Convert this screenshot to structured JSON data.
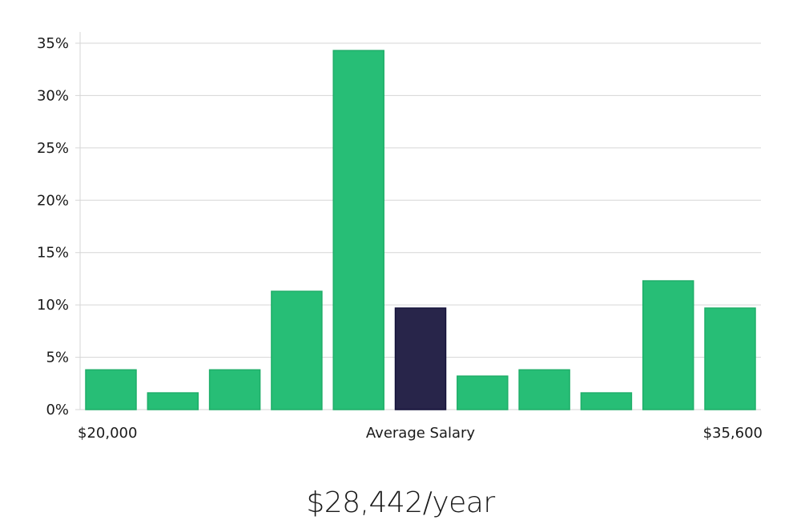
{
  "headline": "$28,442/year",
  "chart_data": {
    "type": "bar",
    "values": [
      3.8,
      1.6,
      3.8,
      11.3,
      34.3,
      9.7,
      3.2,
      3.8,
      1.6,
      12.3,
      9.7
    ],
    "highlight_index": 5,
    "x_labels": {
      "left": "$20,000",
      "center": "Average Salary",
      "right": "$35,600"
    },
    "y_ticks": [
      "0%",
      "5%",
      "10%",
      "15%",
      "20%",
      "25%",
      "30%",
      "35%"
    ],
    "ylim": [
      0,
      35
    ],
    "grid": true,
    "colors": {
      "bar": "#27be76",
      "bar_border": "#1fae69",
      "highlight": "#28254a",
      "highlight_border": "#14123a",
      "grid": "#d6d6d6"
    }
  }
}
